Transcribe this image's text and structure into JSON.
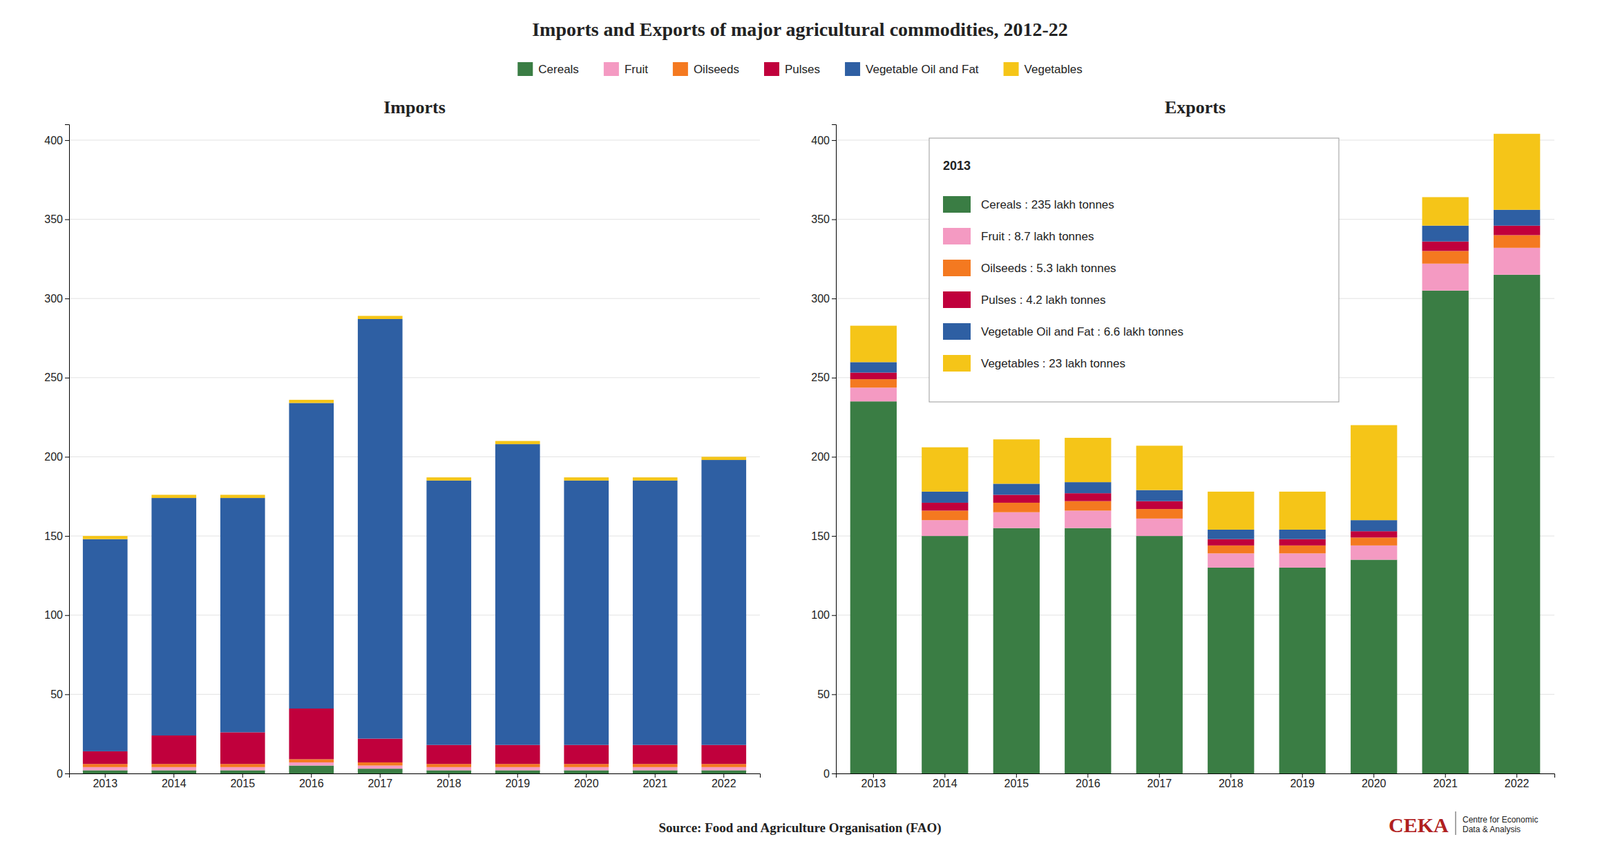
{
  "title": "Imports and Exports of major agricultural commodities, 2012-22",
  "annotations": [
    {
      "text": "Source: Food and Agriculture Organisation (FAO)"
    },
    {
      "text": "CEΚA",
      "color": "#b02020"
    },
    {
      "text": "Centre for Economic\nData & Analysis"
    }
  ],
  "chart_data": [
    {
      "type": "bar",
      "title": "Imports",
      "stacked": true,
      "grid": true,
      "legend": "top",
      "categories": [
        "2013",
        "2014",
        "2015",
        "2016",
        "2017",
        "2018",
        "2019",
        "2020",
        "2021",
        "2022"
      ],
      "series": [
        {
          "name": "Cereals",
          "color": "#3a7d44",
          "values": [
            2,
            2,
            2,
            5,
            3,
            2,
            2,
            2,
            2,
            2
          ]
        },
        {
          "name": "Fruit",
          "color": "#f49ac2",
          "values": [
            2,
            2,
            2,
            2,
            2,
            2,
            2,
            2,
            2,
            2
          ]
        },
        {
          "name": "Oilseeds",
          "color": "#f47920",
          "values": [
            2,
            2,
            2,
            2,
            2,
            2,
            2,
            2,
            2,
            2
          ]
        },
        {
          "name": "Pulses",
          "color": "#c0003c",
          "values": [
            8,
            18,
            20,
            32,
            15,
            12,
            12,
            12,
            12,
            12
          ]
        },
        {
          "name": "Vegetable Oil and Fat",
          "color": "#2e5fa3",
          "values": [
            134,
            150,
            148,
            193,
            265,
            167,
            190,
            167,
            167,
            180
          ]
        },
        {
          "name": "Vegetables",
          "color": "#f5c518",
          "values": [
            2,
            2,
            2,
            2,
            2,
            2,
            2,
            2,
            2,
            2
          ]
        }
      ],
      "ylim": [
        0,
        410
      ],
      "yticks": [
        0,
        50,
        100,
        150,
        200,
        250,
        300,
        350,
        400
      ]
    },
    {
      "type": "bar",
      "title": "Exports",
      "stacked": true,
      "grid": true,
      "categories": [
        "2013",
        "2014",
        "2015",
        "2016",
        "2017",
        "2018",
        "2019",
        "2020",
        "2021",
        "2022"
      ],
      "series": [
        {
          "name": "Cereals",
          "color": "#3a7d44",
          "values": [
            235,
            150,
            155,
            155,
            150,
            130,
            130,
            135,
            305,
            315
          ]
        },
        {
          "name": "Fruit",
          "color": "#f49ac2",
          "values": [
            8.7,
            10,
            10,
            11,
            11,
            9,
            9,
            9,
            17,
            17
          ]
        },
        {
          "name": "Oilseeds",
          "color": "#f47920",
          "values": [
            5.3,
            6,
            6,
            6,
            6,
            5,
            5,
            5,
            8,
            8
          ]
        },
        {
          "name": "Pulses",
          "color": "#c0003c",
          "values": [
            4.2,
            5,
            5,
            5,
            5,
            4,
            4,
            4,
            6,
            6
          ]
        },
        {
          "name": "Vegetable Oil and Fat",
          "color": "#2e5fa3",
          "values": [
            6.6,
            7,
            7,
            7,
            7,
            6,
            6,
            7,
            10,
            10
          ]
        },
        {
          "name": "Vegetables",
          "color": "#f5c518",
          "values": [
            23,
            28,
            28,
            28,
            28,
            24,
            24,
            60,
            18,
            48
          ]
        }
      ],
      "ylim": [
        0,
        410
      ],
      "yticks": [
        0,
        50,
        100,
        150,
        200,
        250,
        300,
        350,
        400
      ],
      "annotations": [
        {
          "text": "2013"
        },
        {
          "text": "Cereals : 235 lakh tonnes",
          "color": "#3a7d44"
        },
        {
          "text": "Fruit : 8.7 lakh tonnes",
          "color": "#f49ac2"
        },
        {
          "text": "Oilseeds : 5.3 lakh tonnes",
          "color": "#f47920"
        },
        {
          "text": "Pulses : 4.2 lakh tonnes",
          "color": "#c0003c"
        },
        {
          "text": "Vegetable Oil and Fat : 6.6 lakh tonnes",
          "color": "#2e5fa3"
        },
        {
          "text": "Vegetables : 23 lakh tonnes",
          "color": "#f5c518"
        }
      ]
    }
  ]
}
